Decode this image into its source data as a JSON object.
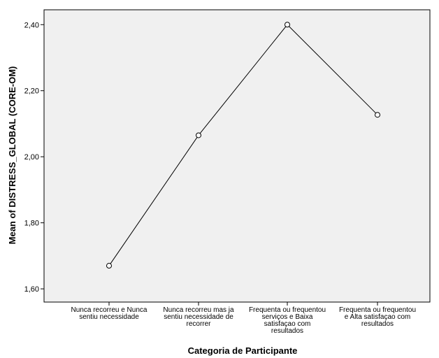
{
  "chart_data": {
    "type": "line",
    "xlabel": "Categoria de Participante",
    "ylabel": "Mean of DISTRESS_GLOBAL (CORE-OM)",
    "categories": [
      [
        "Nunca recorreu e Nunca",
        "sentiu necessidade"
      ],
      [
        "Nunca recorreu mas ja",
        "sentiu necessidade de",
        "recorrer"
      ],
      [
        "Frequenta ou frequentou",
        "serviços e Baixa",
        "satisfaçao com",
        "resultados"
      ],
      [
        "Frequenta ou frequentou",
        "e Alta satisfaçao com",
        "resultados"
      ]
    ],
    "values": [
      1.67,
      2.065,
      2.4,
      2.127
    ],
    "ylim": [
      1.56,
      2.445
    ],
    "yticks": [
      1.6,
      1.8,
      2.0,
      2.2,
      2.4
    ],
    "ytick_labels": [
      "1,60",
      "1,80",
      "2,00",
      "2,20",
      "2,40"
    ],
    "grid": false,
    "colors": {
      "plot_background": "#f0f0f0",
      "line": "#000000",
      "marker_fill": "#ffffff"
    }
  }
}
